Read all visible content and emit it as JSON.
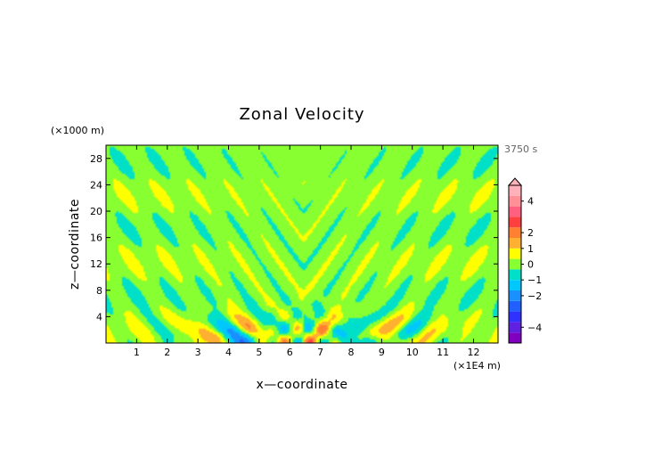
{
  "chart_data": {
    "type": "heatmap",
    "title": "Zonal Velocity",
    "xlabel": "x—coordinate",
    "ylabel": "z—coordinate",
    "x_unit": "(×1E4 m)",
    "y_unit": "(×1000 m)",
    "time_label": "3750 s",
    "xlim": [
      0,
      12.8
    ],
    "ylim": [
      0,
      30
    ],
    "x_ticks": [
      1,
      2,
      3,
      4,
      5,
      6,
      7,
      8,
      9,
      10,
      11,
      12
    ],
    "y_ticks": [
      4,
      8,
      12,
      16,
      20,
      24,
      28
    ],
    "colorbar": {
      "range": [
        -5,
        5
      ],
      "levels": [
        -5,
        -4.5,
        -4,
        -3.5,
        -3,
        -2.5,
        -2,
        -1.5,
        -1,
        -0.5,
        0,
        0.5,
        1,
        1.5,
        2,
        2.5,
        3,
        3.5,
        4,
        4.5,
        5
      ],
      "colors": [
        "#8000c0",
        "#6020e0",
        "#3030ff",
        "#2060ff",
        "#1a90ff",
        "#00c8ff",
        "#00e0c8",
        "#88ff30",
        "#ffff00",
        "#ffb030",
        "#ff8030",
        "#ff4040",
        "#ff6080",
        "#ff9098",
        "#ffb0b8"
      ],
      "tick_values": [
        4,
        2,
        1,
        0,
        -1,
        -2,
        -4
      ],
      "tick_labels": [
        "4",
        "2",
        "1",
        "0",
        "−1",
        "−2",
        "−4"
      ]
    }
  }
}
